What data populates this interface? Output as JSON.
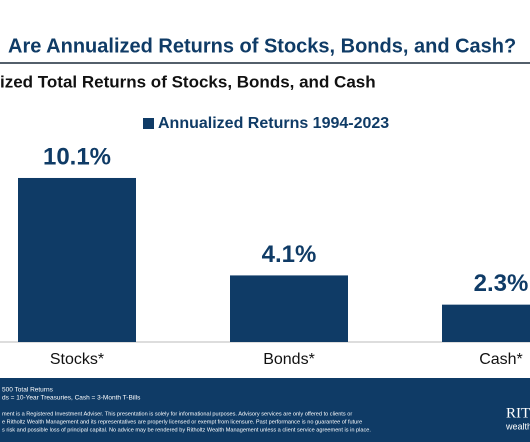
{
  "chart_data": {
    "type": "bar",
    "title": "Are Annualized Returns of Stocks, Bonds, and Cash?",
    "subtitle": "ized Total Returns of Stocks, Bonds, and Cash",
    "categories": [
      "Stocks*",
      "Bonds*",
      "Cash*"
    ],
    "series": [
      {
        "name": "Annualized Returns 1994-2023",
        "color": "#0f3b66",
        "values": [
          10.1,
          4.1,
          2.3
        ],
        "value_labels": [
          "10.1%",
          "4.1%",
          "2.3%"
        ]
      }
    ]
  },
  "footer": {
    "notes": [
      "500 Total Returns",
      "ds = 10-Year Treasuries, Cash = 3-Month T-Bills"
    ],
    "disclaimer": [
      "ment is a Registered Investment Adviser. This presentation is solely for informational purposes. Advisory services are only offered to clients or",
      "e Ritholtz Wealth Management and its representatives are properly licensed or exempt from licensure. Past performance is no guarantee of future",
      "s risk and possible loss of principal capital. No advice may be rendered by Ritholtz Wealth Management unless a client service agreement is in place."
    ],
    "logo": "RIT",
    "logo_sub": "wealth"
  }
}
